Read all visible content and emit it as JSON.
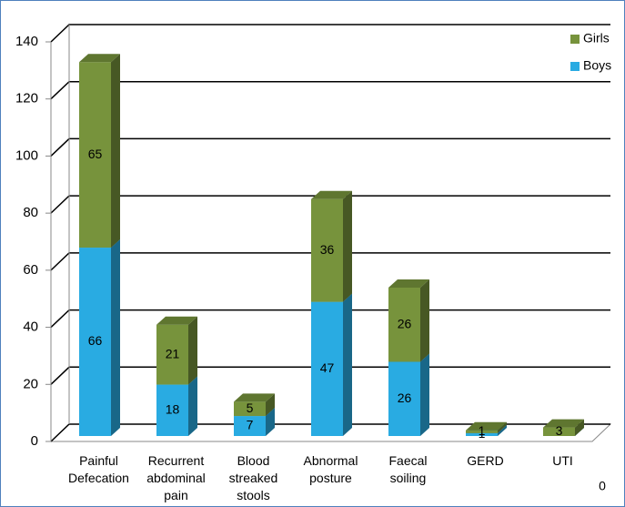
{
  "chart_data": {
    "type": "bar",
    "stacked": true,
    "categories": [
      "Painful Defecation",
      "Recurrent abdominal pain",
      "Blood streaked stools",
      "Abnormal posture",
      "Faecal soiling",
      "GERD",
      "UTI"
    ],
    "series": [
      {
        "name": "Boys",
        "color": "#29abe2",
        "values": [
          66,
          18,
          7,
          47,
          26,
          1,
          0
        ]
      },
      {
        "name": "Girls",
        "color": "#77933c",
        "values": [
          65,
          21,
          5,
          36,
          26,
          1,
          3
        ]
      }
    ],
    "ylim": [
      0,
      140
    ],
    "yticks": [
      0,
      20,
      40,
      60,
      80,
      100,
      120,
      140
    ],
    "grid": true,
    "legend": "top-right"
  }
}
